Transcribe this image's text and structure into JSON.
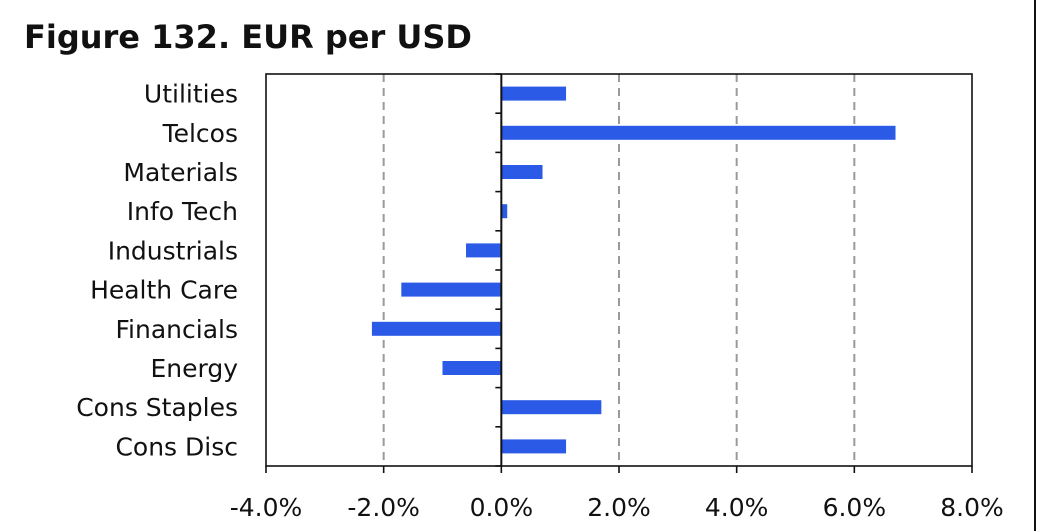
{
  "title": "Figure 132. EUR per USD",
  "chart_data": {
    "type": "bar",
    "orientation": "horizontal",
    "title": "Figure 132. EUR per USD",
    "categories": [
      "Utilities",
      "Telcos",
      "Materials",
      "Info Tech",
      "Industrials",
      "Health Care",
      "Financials",
      "Energy",
      "Cons Staples",
      "Cons Disc"
    ],
    "values": [
      1.1,
      6.7,
      0.7,
      0.1,
      -0.6,
      -1.7,
      -2.2,
      -1.0,
      1.7,
      1.1
    ],
    "xlabel": "",
    "ylabel": "",
    "xlim": [
      -4,
      8
    ],
    "x_ticks": [
      -4,
      -2,
      0,
      2,
      4,
      6,
      8
    ],
    "x_tick_labels": [
      "-4.0%",
      "-2.0%",
      "0.0%",
      "2.0%",
      "4.0%",
      "6.0%",
      "8.0%"
    ],
    "grid": "vertical dashed",
    "legend": "none",
    "colors": {
      "bar": "#2a5ae6",
      "grid": "#9a9a9a",
      "axis": "#111111"
    }
  }
}
